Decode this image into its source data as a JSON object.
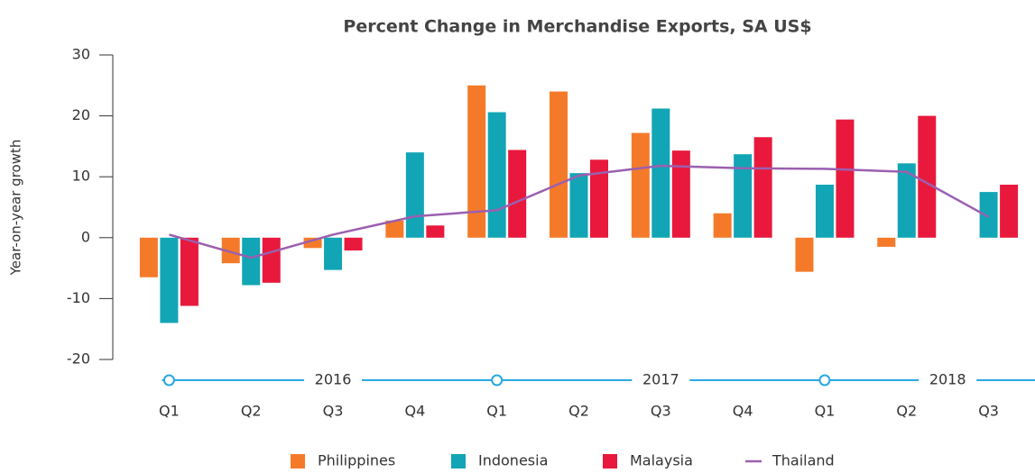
{
  "chart_data": {
    "type": "bar",
    "title": "Percent Change in Merchandise Exports, SA US$",
    "y_label": "Year-on-year growth",
    "categories": [
      "Q1",
      "Q2",
      "Q3",
      "Q4",
      "Q1",
      "Q2",
      "Q3",
      "Q4",
      "Q1",
      "Q2",
      "Q3"
    ],
    "year_groups": [
      "2016",
      "2017",
      "2018"
    ],
    "ylim": [
      -20,
      30
    ],
    "yticks": [
      -20,
      -10,
      0,
      10,
      20,
      30
    ],
    "series": [
      {
        "name": "Philippines",
        "color": "#f47a2a",
        "values": [
          -6.5,
          -4.2,
          -1.7,
          2.8,
          25,
          24,
          17.2,
          4,
          -5.6,
          -1.5,
          null
        ]
      },
      {
        "name": "Indonesia",
        "color": "#12a5b5",
        "values": [
          -14,
          -7.8,
          -5.3,
          14,
          20.6,
          10.6,
          21.2,
          13.7,
          8.7,
          12.2,
          7.5
        ]
      },
      {
        "name": "Malaysia",
        "color": "#e8193c",
        "values": [
          -11.2,
          -7.4,
          -2.1,
          2,
          14.4,
          12.8,
          14.3,
          16.5,
          19.4,
          20,
          8.7
        ]
      },
      {
        "name": "Thailand",
        "color": "#9b5fb0",
        "type": "line",
        "values": [
          0.5,
          -3.3,
          0.5,
          3.5,
          4.5,
          10.2,
          11.8,
          11.4,
          11.3,
          10.8,
          3.4
        ]
      }
    ]
  }
}
